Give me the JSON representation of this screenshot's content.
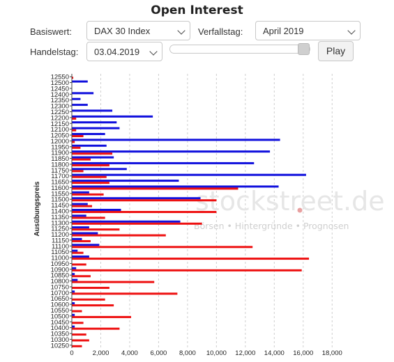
{
  "header": {
    "title": "Open Interest"
  },
  "controls": {
    "basiswert_label": "Basiswert:",
    "basiswert_value": "DAX 30 Index",
    "verfallstag_label": "Verfallstag:",
    "verfallstag_value": "April 2019",
    "handelstag_label": "Handelstag:",
    "handelstag_value": "03.04.2019",
    "slider_value": 1.0,
    "play_label": "Play"
  },
  "watermark": {
    "brand": "stockstreet.de",
    "tagline": "Börsen • Hintergründe • Prognosen"
  },
  "colors": {
    "calls": "#1010dd",
    "puts": "#ee1111"
  },
  "chart_data": {
    "type": "bar",
    "orientation": "horizontal",
    "ylabel": "Ausübungspreis",
    "xlabel": "",
    "xlim": [
      0,
      19000
    ],
    "xticks": [
      "0",
      "2,000",
      "4,000",
      "6,000",
      "8,000",
      "10,000",
      "12,000",
      "14,000",
      "16,000",
      "18,000"
    ],
    "grid": true,
    "categories": [
      12550,
      12500,
      12450,
      12400,
      12350,
      12300,
      12250,
      12200,
      12150,
      12100,
      12050,
      12000,
      11950,
      11900,
      11850,
      11800,
      11750,
      11700,
      11650,
      11600,
      11550,
      11500,
      11450,
      11400,
      11350,
      11300,
      11250,
      11200,
      11150,
      11100,
      11050,
      11000,
      10950,
      10900,
      10850,
      10800,
      10750,
      10700,
      10650,
      10600,
      10550,
      10500,
      10450,
      10400,
      10350,
      10300,
      10250
    ],
    "series": [
      {
        "color": "blue",
        "values": [
          0,
          1100,
          0,
          1500,
          600,
          1100,
          2800,
          5600,
          3100,
          3300,
          2300,
          14400,
          2400,
          13700,
          2900,
          12600,
          3800,
          16200,
          7400,
          14300,
          1200,
          8900,
          1100,
          3400,
          1000,
          7500,
          1200,
          1800,
          700,
          1900,
          400,
          1200,
          0,
          300,
          200,
          400,
          0,
          200,
          0,
          200,
          0,
          200,
          0,
          200,
          0,
          0,
          0
        ]
      },
      {
        "color": "red",
        "values": [
          100,
          0,
          0,
          0,
          0,
          0,
          0,
          300,
          0,
          300,
          800,
          200,
          600,
          2800,
          1300,
          2600,
          800,
          2400,
          2600,
          11500,
          2200,
          10000,
          1400,
          10000,
          2300,
          9000,
          3300,
          6500,
          1300,
          12500,
          800,
          16400,
          1000,
          15900,
          1300,
          5700,
          2600,
          7300,
          2300,
          2900,
          700,
          4100,
          800,
          3300,
          1000,
          1200,
          700
        ]
      }
    ]
  }
}
